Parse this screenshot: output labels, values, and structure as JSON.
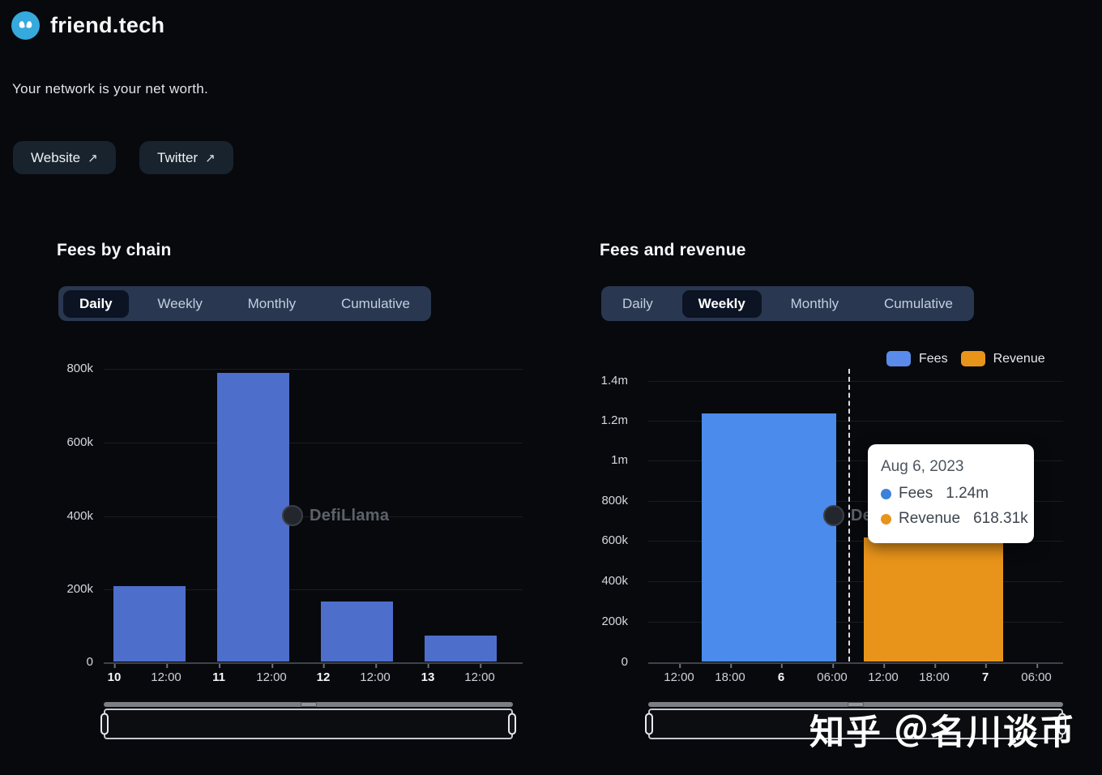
{
  "header": {
    "title": "friend.tech",
    "tagline": "Your network is your net worth.",
    "website_button": "Website",
    "twitter_button": "Twitter",
    "external_arrow": "↗"
  },
  "left_chart": {
    "title": "Fees by chain",
    "tabs": [
      "Daily",
      "Weekly",
      "Monthly",
      "Cumulative"
    ],
    "active_tab": "Daily",
    "y_ticks": [
      "800k",
      "600k",
      "400k",
      "200k",
      "0"
    ],
    "x_ticks": [
      "10",
      "12:00",
      "11",
      "12:00",
      "12",
      "12:00",
      "13",
      "12:00"
    ],
    "watermark": "DefiLlama"
  },
  "right_chart": {
    "title": "Fees and revenue",
    "tabs": [
      "Daily",
      "Weekly",
      "Monthly",
      "Cumulative"
    ],
    "active_tab": "Weekly",
    "legend": [
      {
        "label": "Fees",
        "color": "#5a8bea"
      },
      {
        "label": "Revenue",
        "color": "#e8941a"
      }
    ],
    "y_ticks": [
      "1.4m",
      "1.2m",
      "1m",
      "800k",
      "600k",
      "400k",
      "200k",
      "0"
    ],
    "x_ticks": [
      "12:00",
      "18:00",
      "6",
      "06:00",
      "12:00",
      "18:00",
      "7",
      "06:00"
    ],
    "watermark": "DefiLlama",
    "tooltip": {
      "date": "Aug 6, 2023",
      "rows": [
        {
          "label": "Fees",
          "value": "1.24m",
          "color": "#3b82d8"
        },
        {
          "label": "Revenue",
          "value": "618.31k",
          "color": "#e8941a"
        }
      ]
    }
  },
  "overlay_watermark": "知乎 ＠名川谈币",
  "chart_data": [
    {
      "id": "fees-by-chain",
      "type": "bar",
      "title": "Fees by chain",
      "period_selected": "Daily",
      "x_axis_type": "time",
      "categories": [
        "10",
        "11",
        "12",
        "13"
      ],
      "series": [
        {
          "name": "Fees",
          "color": "#4d6ecb",
          "values": [
            205000,
            790000,
            165000,
            70000
          ]
        }
      ],
      "x_tick_labels": [
        "10",
        "12:00",
        "11",
        "12:00",
        "12",
        "12:00",
        "13",
        "12:00"
      ],
      "y_tick_labels": [
        "800k",
        "600k",
        "400k",
        "200k",
        "0"
      ],
      "ylim": [
        0,
        800000
      ],
      "grid": true,
      "legend": false,
      "watermark": "DefiLlama"
    },
    {
      "id": "fees-and-revenue",
      "type": "bar",
      "title": "Fees and revenue",
      "period_selected": "Weekly",
      "x_axis_type": "time",
      "categories": [
        "Aug 6, 2023"
      ],
      "series": [
        {
          "name": "Fees",
          "color": "#4a8bec",
          "values": [
            1240000
          ]
        },
        {
          "name": "Revenue",
          "color": "#e8941a",
          "values": [
            618310
          ]
        }
      ],
      "x_tick_labels": [
        "12:00",
        "18:00",
        "6",
        "06:00",
        "12:00",
        "18:00",
        "7",
        "06:00"
      ],
      "y_tick_labels": [
        "1.4m",
        "1.2m",
        "1m",
        "800k",
        "600k",
        "400k",
        "200k",
        "0"
      ],
      "ylim": [
        0,
        1400000
      ],
      "grid": true,
      "legend_position": "top-right",
      "crosshair": true,
      "tooltip": {
        "date": "Aug 6, 2023",
        "fees": "1.24m",
        "revenue": "618.31k"
      },
      "watermark": "DefiLlama"
    }
  ]
}
